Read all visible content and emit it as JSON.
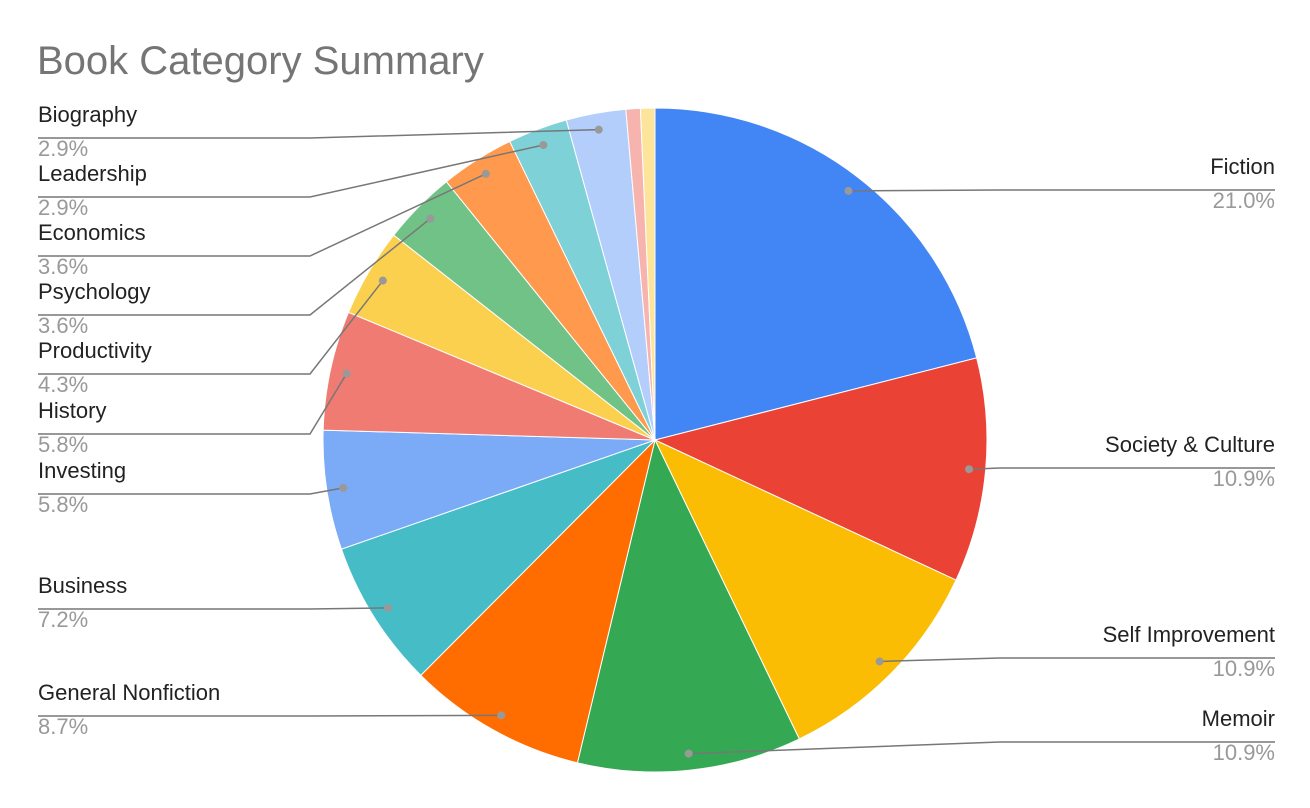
{
  "chart_data": {
    "type": "pie",
    "title": "Book Category Summary",
    "categories": [
      "Fiction",
      "Society & Culture",
      "Self Improvement",
      "Memoir",
      "General Nonfiction",
      "Business",
      "Investing",
      "History",
      "Productivity",
      "Psychology",
      "Economics",
      "Leadership",
      "Biography",
      null,
      null
    ],
    "values": [
      21.0,
      10.9,
      10.9,
      10.9,
      8.7,
      7.2,
      5.8,
      5.8,
      4.3,
      3.6,
      3.6,
      2.9,
      2.9,
      0.7,
      0.7
    ],
    "value_labels": [
      "21.0%",
      "10.9%",
      "10.9%",
      "10.9%",
      "8.7%",
      "7.2%",
      "5.8%",
      "5.8%",
      "4.3%",
      "3.6%",
      "3.6%",
      "2.9%",
      "2.9%",
      null,
      null
    ],
    "colors": [
      "#4285f4",
      "#ea4335",
      "#fbbc04",
      "#34a853",
      "#ff6d01",
      "#46bdc6",
      "#7baaf7",
      "#f07b72",
      "#fcd04f",
      "#71c287",
      "#ff994d",
      "#7ed1d7",
      "#b3cefb",
      "#f7b4ae",
      "#fde49b"
    ]
  }
}
